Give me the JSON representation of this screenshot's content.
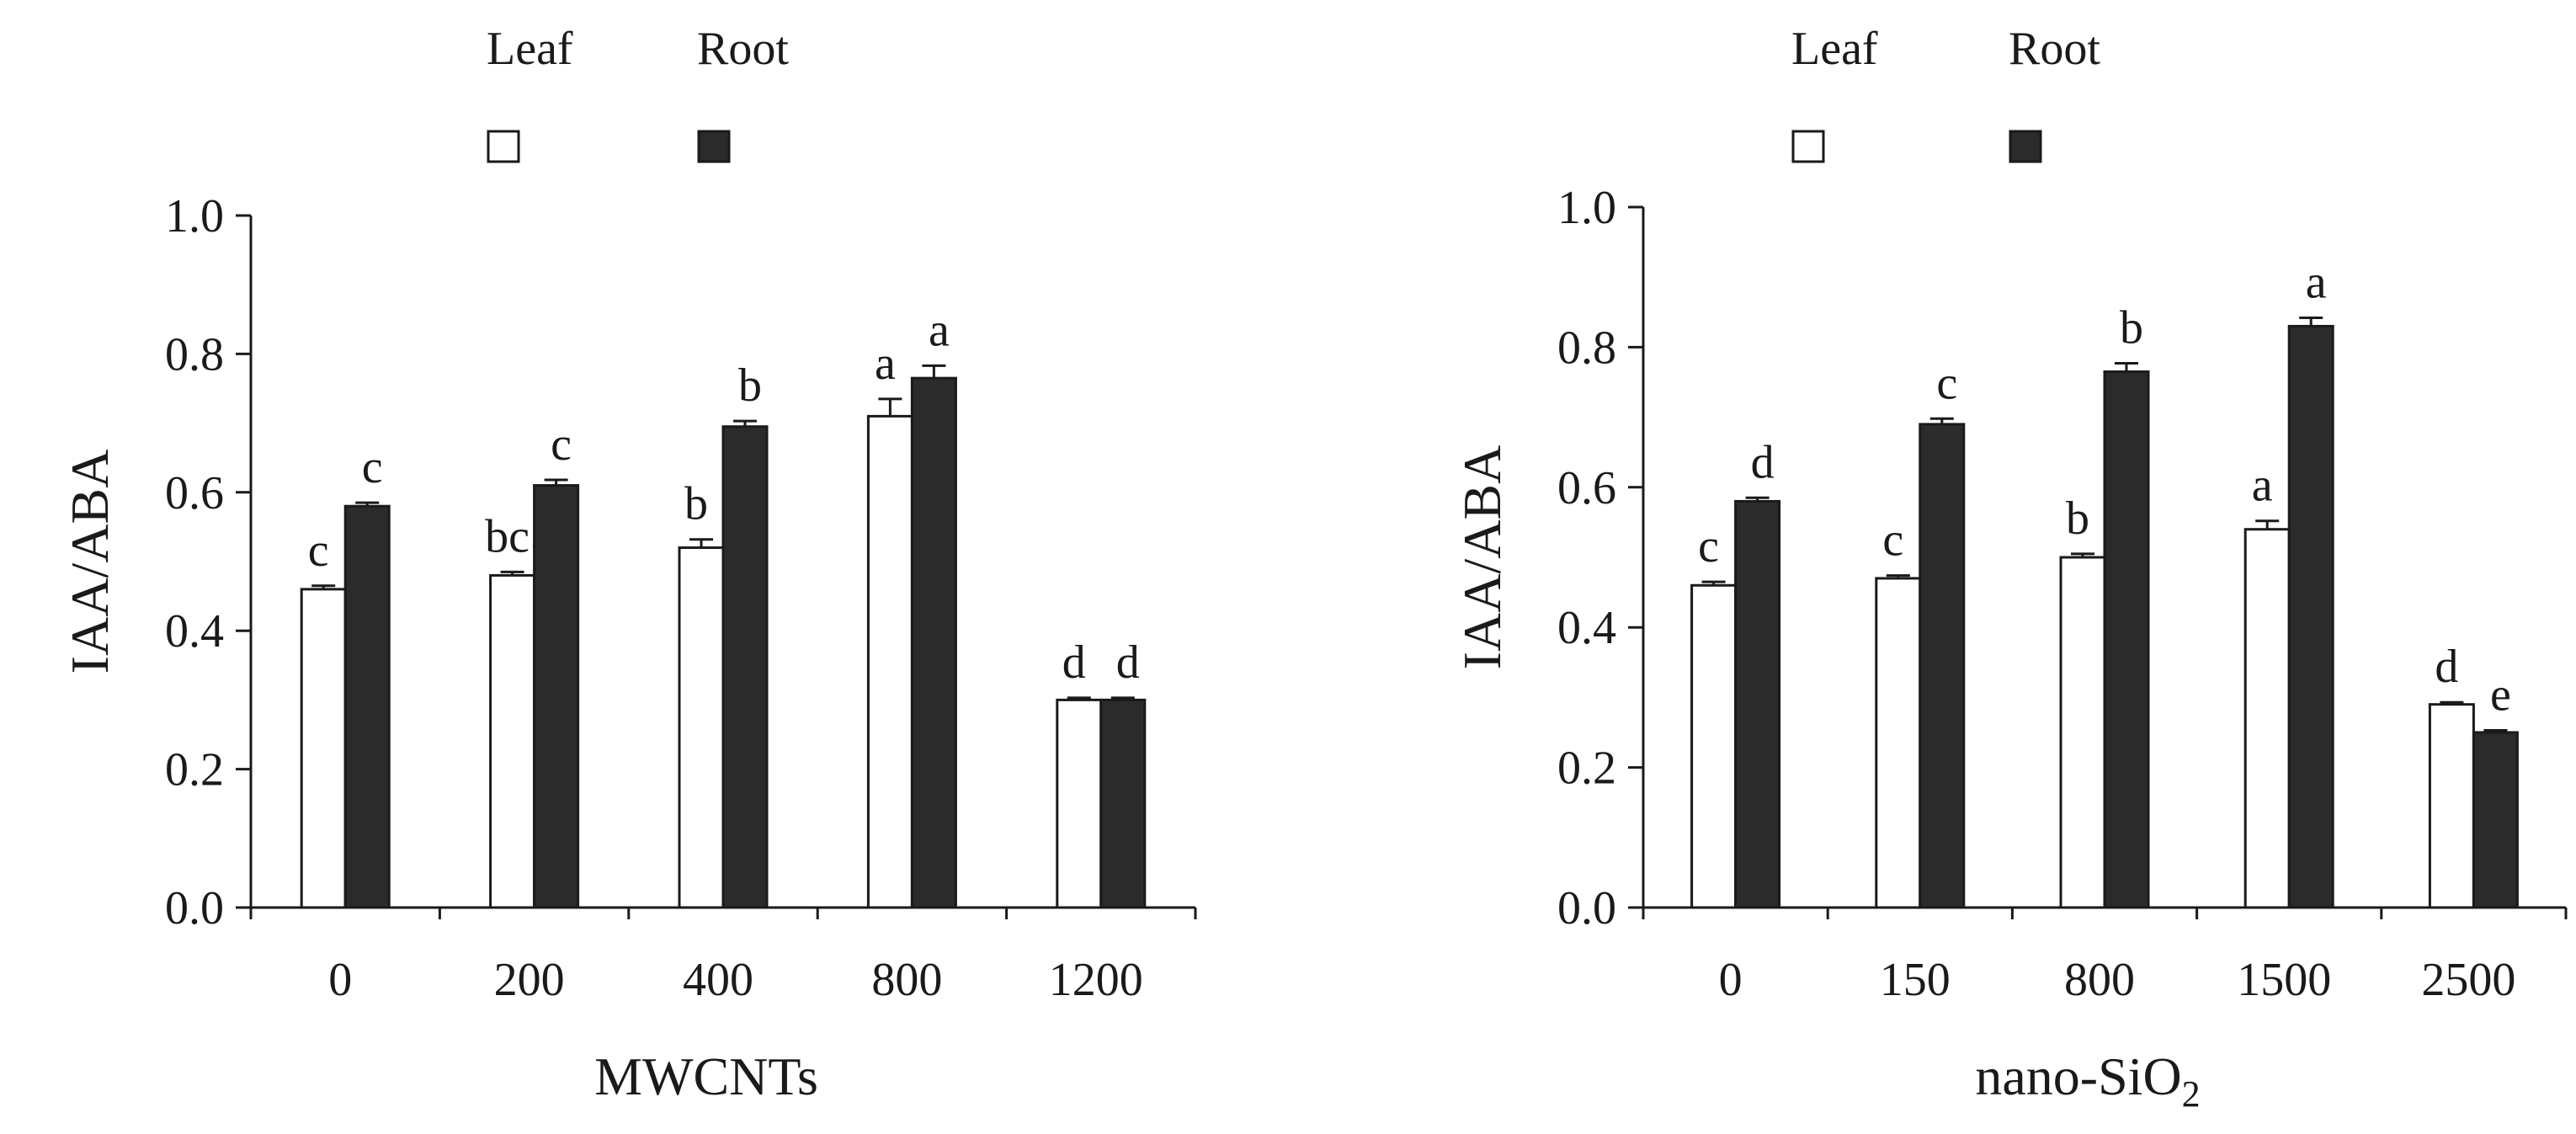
{
  "colors": {
    "leaf": "#ffffff",
    "root": "#2b2b2b",
    "ink": "#1a1a1a"
  },
  "chart_data": [
    {
      "type": "bar",
      "title": "",
      "xlabel": "MWCNTs",
      "ylabel": "IAA/ABA",
      "ylim": [
        0,
        1.0
      ],
      "yticks": [
        "0.0",
        "0.2",
        "0.4",
        "0.6",
        "0.8",
        "1.0"
      ],
      "grid": false,
      "legend_position": "top-left",
      "categories": [
        "0",
        "200",
        "400",
        "800",
        "1200"
      ],
      "series": [
        {
          "name": "Leaf",
          "values": [
            0.46,
            0.48,
            0.52,
            0.71,
            0.3
          ],
          "errors": [
            0.005,
            0.005,
            0.012,
            0.025,
            0.003
          ],
          "labels": [
            "c",
            "bc",
            "b",
            "a",
            "d"
          ]
        },
        {
          "name": "Root",
          "values": [
            0.58,
            0.61,
            0.695,
            0.765,
            0.3
          ],
          "errors": [
            0.005,
            0.008,
            0.008,
            0.018,
            0.003
          ],
          "labels": [
            "c",
            "c",
            "b",
            "a",
            "d"
          ]
        }
      ]
    },
    {
      "type": "bar",
      "title": "",
      "xlabel": "nano-SiO",
      "xlabel_sub": "2",
      "ylabel": "IAA/ABA",
      "ylim": [
        0,
        1.0
      ],
      "yticks": [
        "0.0",
        "0.2",
        "0.4",
        "0.6",
        "0.8",
        "1.0"
      ],
      "grid": false,
      "legend_position": "top-left",
      "categories": [
        "0",
        "150",
        "800",
        "1500",
        "2500"
      ],
      "series": [
        {
          "name": "Leaf",
          "values": [
            0.46,
            0.47,
            0.5,
            0.54,
            0.29
          ],
          "errors": [
            0.005,
            0.004,
            0.005,
            0.012,
            0.003
          ],
          "labels": [
            "c",
            "c",
            "b",
            "a",
            "d"
          ]
        },
        {
          "name": "Root",
          "values": [
            0.58,
            0.69,
            0.765,
            0.83,
            0.25
          ],
          "errors": [
            0.005,
            0.008,
            0.012,
            0.012,
            0.003
          ],
          "labels": [
            "d",
            "c",
            "b",
            "a",
            "e"
          ]
        }
      ]
    }
  ]
}
